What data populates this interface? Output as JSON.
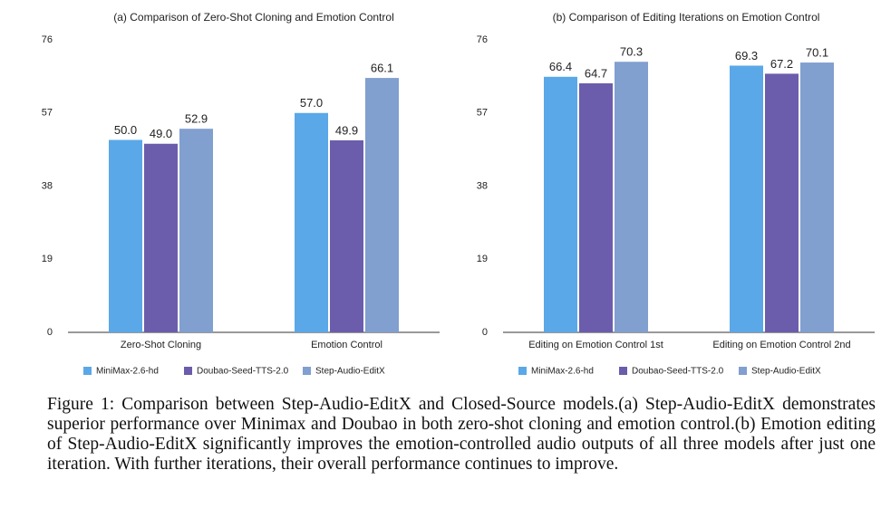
{
  "chart_data": [
    {
      "type": "bar",
      "title": "(a)  Comparison of Zero-Shot Cloning and Emotion Control",
      "categories": [
        "Zero-Shot Cloning",
        "Emotion Control"
      ],
      "series": [
        {
          "name": "MiniMax-2.6-hd",
          "color": "#5aa8e8",
          "values": [
            50.0,
            57.0
          ],
          "value_labels": [
            "50.0",
            "57.0"
          ]
        },
        {
          "name": "Doubao-Seed-TTS-2.0",
          "color": "#6b5dab",
          "values": [
            49.0,
            49.9
          ],
          "value_labels": [
            "49.0",
            "49.9"
          ]
        },
        {
          "name": "Step-Audio-EditX",
          "color": "#819fcf",
          "values": [
            52.9,
            66.1
          ],
          "value_labels": [
            "52.9",
            "66.1"
          ]
        }
      ],
      "ylim": [
        0,
        76
      ],
      "yticks": [
        0,
        19,
        38,
        57,
        76
      ],
      "grid": false,
      "legend": "bottom"
    },
    {
      "type": "bar",
      "title": "(b)  Comparison of Editing Iterations on Emotion Control",
      "categories": [
        "Editing on Emotion Control 1st",
        "Editing on Emotion Control 2nd"
      ],
      "series": [
        {
          "name": "MiniMax-2.6-hd",
          "color": "#5aa8e8",
          "values": [
            66.4,
            69.3
          ],
          "value_labels": [
            "66.4",
            "69.3"
          ]
        },
        {
          "name": "Doubao-Seed-TTS-2.0",
          "color": "#6b5dab",
          "values": [
            64.7,
            67.2
          ],
          "value_labels": [
            "64.7",
            "67.2"
          ]
        },
        {
          "name": "Step-Audio-EditX",
          "color": "#819fcf",
          "values": [
            70.3,
            70.1
          ],
          "value_labels": [
            "70.3",
            "70.1"
          ]
        }
      ],
      "ylim": [
        0,
        76
      ],
      "yticks": [
        0,
        19,
        38,
        57,
        76
      ],
      "grid": false,
      "legend": "bottom"
    }
  ],
  "caption": "Figure 1: Comparison between Step-Audio-EditX and Closed-Source models.(a) Step-Audio-EditX demonstrates superior performance over Minimax and Doubao in both zero-shot cloning and emotion control.(b) Emotion editing of Step-Audio-EditX significantly improves the emotion-controlled audio outputs of all three models after just one iteration.  With further iterations, their overall performance continues to improve."
}
